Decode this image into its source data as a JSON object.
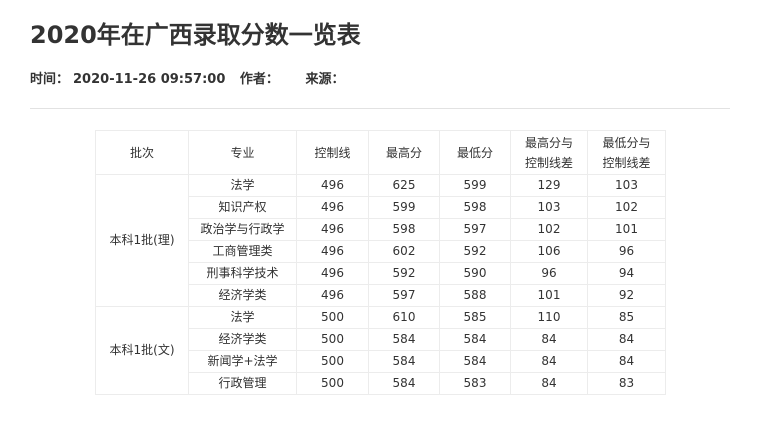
{
  "article": {
    "title": "2020年在广西录取分数一览表",
    "time_label": "时间：",
    "time_value": "2020-11-26 09:57:00",
    "author_label": "作者：",
    "author_value": "",
    "source_label": "来源：",
    "source_value": ""
  },
  "table": {
    "headers": [
      "批次",
      "专业",
      "控制线",
      "最高分",
      "最低分",
      "最高分与控制线差",
      "最低分与控制线差"
    ],
    "groups": [
      {
        "batch": "本科1批(理)",
        "rows": [
          [
            "法学",
            "496",
            "625",
            "599",
            "129",
            "103"
          ],
          [
            "知识产权",
            "496",
            "599",
            "598",
            "103",
            "102"
          ],
          [
            "政治学与行政学",
            "496",
            "598",
            "597",
            "102",
            "101"
          ],
          [
            "工商管理类",
            "496",
            "602",
            "592",
            "106",
            "96"
          ],
          [
            "刑事科学技术",
            "496",
            "592",
            "590",
            "96",
            "94"
          ],
          [
            "经济学类",
            "496",
            "597",
            "588",
            "101",
            "92"
          ]
        ]
      },
      {
        "batch": "本科1批(文)",
        "rows": [
          [
            "法学",
            "500",
            "610",
            "585",
            "110",
            "85"
          ],
          [
            "经济学类",
            "500",
            "584",
            "584",
            "84",
            "84"
          ],
          [
            "新闻学+法学",
            "500",
            "584",
            "584",
            "84",
            "84"
          ],
          [
            "行政管理",
            "500",
            "584",
            "583",
            "84",
            "83"
          ]
        ]
      }
    ]
  }
}
